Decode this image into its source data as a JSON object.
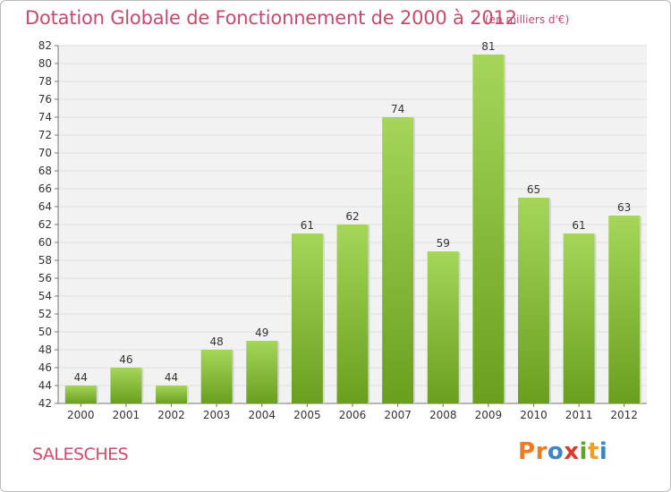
{
  "header": {
    "title": "Dotation Globale de Fonctionnement de 2000 à 2012",
    "unit": "(en milliers d'€)"
  },
  "footer": {
    "commune": "SALESCHES",
    "logo_letters": [
      {
        "char": "P",
        "color": "#f07a20"
      },
      {
        "char": "r",
        "color": "#f07a20"
      },
      {
        "char": "o",
        "color": "#3c86c8"
      },
      {
        "char": "x",
        "color": "#e0392b"
      },
      {
        "char": "i",
        "color": "#5aa82a"
      },
      {
        "char": "t",
        "color": "#f0a020"
      },
      {
        "char": "i",
        "color": "#3c86c8"
      }
    ]
  },
  "colors": {
    "bar_light": "#a5d65a",
    "bar_dark": "#6a9f1e",
    "grid": "#dddddd",
    "plot_bg": "#f2f2f2"
  },
  "chart_data": {
    "type": "bar",
    "title": "Dotation Globale de Fonctionnement de 2000 à 2012",
    "subtitle": "(en milliers d'€)",
    "categories": [
      "2000",
      "2001",
      "2002",
      "2003",
      "2004",
      "2005",
      "2006",
      "2007",
      "2008",
      "2009",
      "2010",
      "2011",
      "2012"
    ],
    "values": [
      44,
      46,
      44,
      48,
      49,
      61,
      62,
      74,
      59,
      81,
      65,
      61,
      63
    ],
    "ylim": [
      42,
      82
    ],
    "yticks": [
      42,
      44,
      46,
      48,
      50,
      52,
      54,
      56,
      58,
      60,
      62,
      64,
      66,
      68,
      70,
      72,
      74,
      76,
      78,
      80,
      82
    ],
    "grid": true,
    "legend": "none"
  }
}
